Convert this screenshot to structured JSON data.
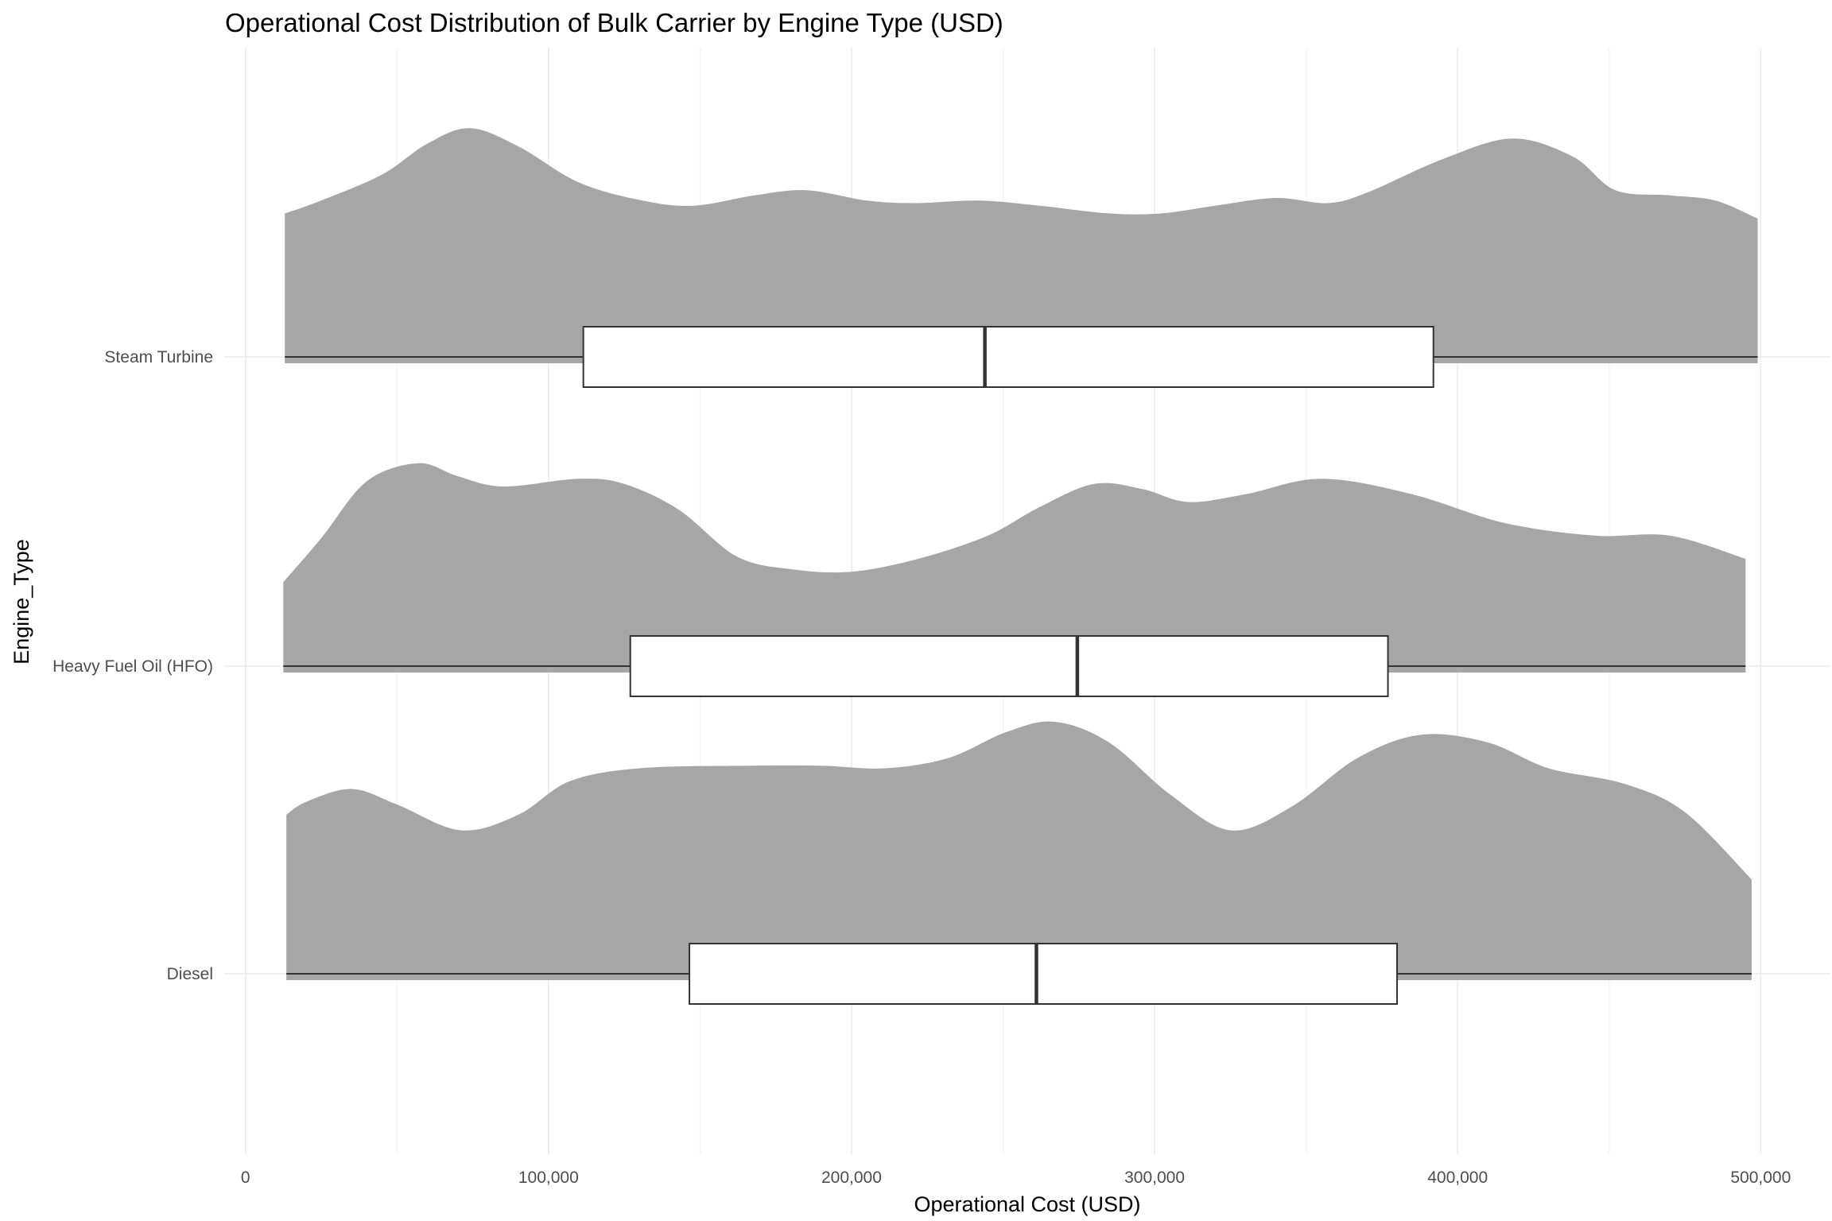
{
  "chart_data": {
    "type": "ridgeline",
    "title": "Operational Cost Distribution of Bulk Carrier by Engine Type (USD)",
    "xlabel": "Operational Cost (USD)",
    "ylabel": "Engine_Type",
    "xlim": [
      -7000,
      523000
    ],
    "x_ticks": [
      0,
      100000,
      200000,
      300000,
      400000,
      500000
    ],
    "x_tick_labels": [
      "0",
      "100,000",
      "200,000",
      "300,000",
      "400,000",
      "500,000"
    ],
    "categories": [
      "Diesel",
      "Heavy Fuel Oil (HFO)",
      "Steam Turbine"
    ],
    "fill_color": "#a6a6a6",
    "grid": true,
    "series": [
      {
        "name": "Diesel",
        "box": {
          "min": 13500,
          "q1": 146500,
          "median": 261000,
          "q3": 380000,
          "max": 497000
        },
        "density": [
          [
            13500,
            0.64
          ],
          [
            20000,
            0.69
          ],
          [
            35000,
            0.74
          ],
          [
            50000,
            0.68
          ],
          [
            71000,
            0.58
          ],
          [
            90000,
            0.64
          ],
          [
            107000,
            0.77
          ],
          [
            130000,
            0.82
          ],
          [
            165000,
            0.83
          ],
          [
            190000,
            0.83
          ],
          [
            211000,
            0.82
          ],
          [
            232000,
            0.86
          ],
          [
            251000,
            0.96
          ],
          [
            267000,
            1.0
          ],
          [
            285000,
            0.92
          ],
          [
            305000,
            0.72
          ],
          [
            325000,
            0.58
          ],
          [
            345000,
            0.67
          ],
          [
            367000,
            0.86
          ],
          [
            388000,
            0.95
          ],
          [
            410000,
            0.92
          ],
          [
            430000,
            0.82
          ],
          [
            455000,
            0.76
          ],
          [
            475000,
            0.65
          ],
          [
            497000,
            0.39
          ]
        ]
      },
      {
        "name": "Heavy Fuel Oil (HFO)",
        "box": {
          "min": 12500,
          "q1": 127000,
          "median": 274500,
          "q3": 377000,
          "max": 495000
        },
        "density": [
          [
            12500,
            0.35
          ],
          [
            25000,
            0.52
          ],
          [
            40000,
            0.74
          ],
          [
            57000,
            0.81
          ],
          [
            70000,
            0.76
          ],
          [
            85000,
            0.72
          ],
          [
            110000,
            0.75
          ],
          [
            125000,
            0.73
          ],
          [
            143000,
            0.63
          ],
          [
            162000,
            0.45
          ],
          [
            180000,
            0.4
          ],
          [
            200000,
            0.39
          ],
          [
            222000,
            0.44
          ],
          [
            245000,
            0.53
          ],
          [
            262000,
            0.64
          ],
          [
            280000,
            0.73
          ],
          [
            296000,
            0.71
          ],
          [
            311000,
            0.66
          ],
          [
            330000,
            0.69
          ],
          [
            355000,
            0.75
          ],
          [
            385000,
            0.69
          ],
          [
            415000,
            0.58
          ],
          [
            445000,
            0.53
          ],
          [
            470000,
            0.53
          ],
          [
            495000,
            0.44
          ]
        ]
      },
      {
        "name": "Steam Turbine",
        "box": {
          "min": 13000,
          "q1": 111500,
          "median": 244000,
          "q3": 392000,
          "max": 499000
        },
        "density": [
          [
            13000,
            0.58
          ],
          [
            25000,
            0.63
          ],
          [
            45000,
            0.73
          ],
          [
            60000,
            0.85
          ],
          [
            74000,
            0.91
          ],
          [
            90000,
            0.84
          ],
          [
            110000,
            0.7
          ],
          [
            131000,
            0.63
          ],
          [
            148000,
            0.61
          ],
          [
            168000,
            0.65
          ],
          [
            185000,
            0.67
          ],
          [
            205000,
            0.63
          ],
          [
            221000,
            0.62
          ],
          [
            242000,
            0.63
          ],
          [
            262000,
            0.61
          ],
          [
            285000,
            0.58
          ],
          [
            302000,
            0.58
          ],
          [
            320000,
            0.61
          ],
          [
            340000,
            0.64
          ],
          [
            357000,
            0.62
          ],
          [
            370000,
            0.66
          ],
          [
            395000,
            0.79
          ],
          [
            418000,
            0.87
          ],
          [
            438000,
            0.8
          ],
          [
            452000,
            0.67
          ],
          [
            470000,
            0.65
          ],
          [
            485000,
            0.63
          ],
          [
            499000,
            0.56
          ]
        ]
      }
    ]
  }
}
